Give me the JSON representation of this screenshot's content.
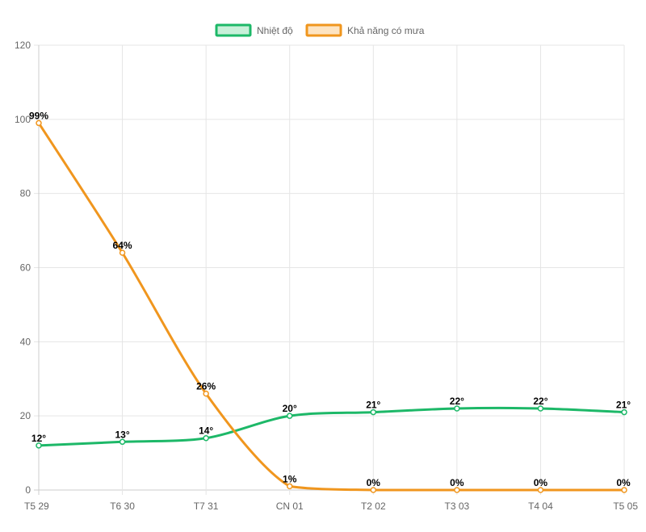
{
  "chart_data": {
    "type": "line",
    "categories": [
      "T5 29",
      "T6 30",
      "T7 31",
      "CN 01",
      "T2 02",
      "T3 03",
      "T4 04",
      "T5 05"
    ],
    "ylim": [
      0,
      120
    ],
    "yticks": [
      0,
      20,
      40,
      60,
      80,
      100,
      120
    ],
    "grid": true,
    "legend_position": "top",
    "series": [
      {
        "name": "Nhiệt độ",
        "values": [
          12,
          13,
          14,
          20,
          21,
          22,
          22,
          21
        ],
        "labels": [
          "12°",
          "13°",
          "14°",
          "20°",
          "21°",
          "22°",
          "22°",
          "21°"
        ],
        "color": "#1db868",
        "fill": "#c8f0d9"
      },
      {
        "name": "Khả năng có mưa",
        "values": [
          99,
          64,
          26,
          1,
          0,
          0,
          0,
          0
        ],
        "labels": [
          "99%",
          "64%",
          "26%",
          "1%",
          "0%",
          "0%",
          "0%",
          "0%"
        ],
        "color": "#f0961e",
        "fill": "#fde4c2"
      }
    ]
  }
}
